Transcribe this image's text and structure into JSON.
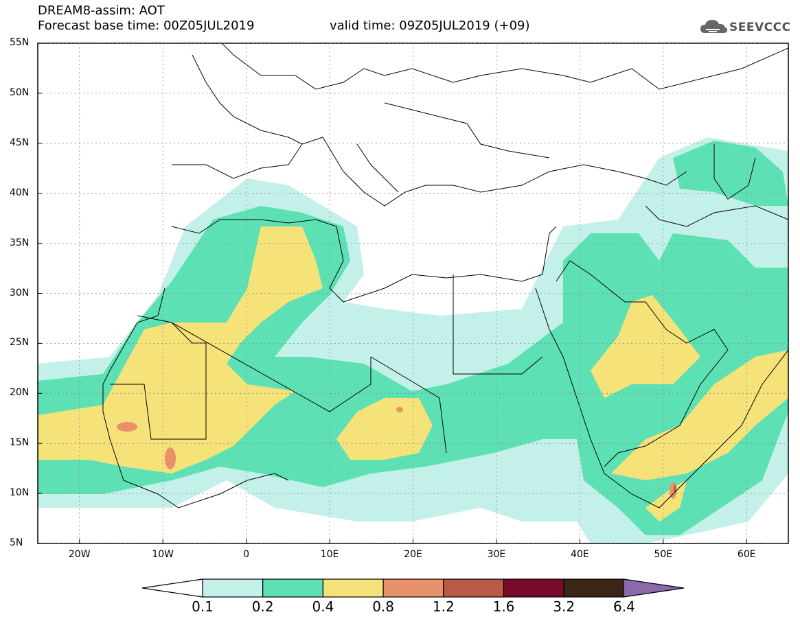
{
  "header": {
    "line1": "DREAM8-assim: AOT",
    "line2_left": "Forecast base time: 00Z05JUL2019",
    "line2_right": "valid time: 09Z05JUL2019 (+09)"
  },
  "logo": {
    "text": "SEEVCCC",
    "icon": "cloud-icon"
  },
  "map": {
    "lat_labels": [
      "55N",
      "50N",
      "45N",
      "40N",
      "35N",
      "30N",
      "25N",
      "20N",
      "15N",
      "10N",
      "5N"
    ],
    "lon_labels": [
      "20W",
      "10W",
      "0",
      "10E",
      "20E",
      "30E",
      "40E",
      "50E",
      "60E"
    ],
    "lat_range": [
      5,
      55
    ],
    "lon_range": [
      -25,
      65
    ]
  },
  "colorbar": {
    "labels": [
      "0.1",
      "0.2",
      "0.4",
      "0.8",
      "1.2",
      "1.6",
      "3.2",
      "6.4"
    ],
    "colors": [
      "#c4f0ea",
      "#5ee0b5",
      "#f5e37a",
      "#e8916a",
      "#b85a45",
      "#7a0a2a",
      "#3a2616",
      "#8a6aa8"
    ]
  }
}
